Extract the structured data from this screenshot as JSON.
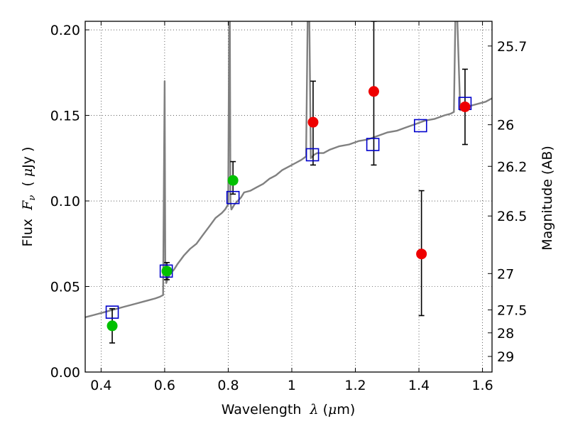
{
  "chart_data": {
    "type": "scatter",
    "xlabel": {
      "text": "Wavelength",
      "symbol": "λ",
      "unit_open": "(",
      "unit_mu": "μ",
      "unit_rest": "m)"
    },
    "ylabel": {
      "text": "Flux",
      "symbol": "F",
      "subscript": "ν",
      "unit_open": "(",
      "unit_mu": "μ",
      "unit_rest": "Jy )"
    },
    "y2label": "Magnitude (AB)",
    "xlim": [
      0.35,
      1.63
    ],
    "ylim": [
      0.0,
      0.205
    ],
    "grid": true,
    "x_ticks": [
      {
        "value": 0.4,
        "label": "0.4"
      },
      {
        "value": 0.6,
        "label": "0.6"
      },
      {
        "value": 0.8,
        "label": "0.8"
      },
      {
        "value": 1.0,
        "label": "1"
      },
      {
        "value": 1.2,
        "label": "1.2"
      },
      {
        "value": 1.4,
        "label": "1.4"
      },
      {
        "value": 1.6,
        "label": "1.6"
      }
    ],
    "y_ticks": [
      {
        "value": 0.0,
        "label": "0.00"
      },
      {
        "value": 0.05,
        "label": "0.05"
      },
      {
        "value": 0.1,
        "label": "0.10"
      },
      {
        "value": 0.15,
        "label": "0.15"
      },
      {
        "value": 0.2,
        "label": "0.20"
      }
    ],
    "mag_ticks": [
      {
        "value": 25.7,
        "label": "25.7"
      },
      {
        "value": 26.0,
        "label": "26"
      },
      {
        "value": 26.2,
        "label": "26.2"
      },
      {
        "value": 26.5,
        "label": "26.5"
      },
      {
        "value": 27.0,
        "label": "27"
      },
      {
        "value": 27.5,
        "label": "27.5"
      },
      {
        "value": 28.0,
        "label": "28"
      },
      {
        "value": 29.0,
        "label": "29"
      }
    ],
    "series": [
      {
        "kind": "line",
        "color": "#808080",
        "x": [
          0.35,
          0.37,
          0.39,
          0.41,
          0.43,
          0.45,
          0.47,
          0.49,
          0.51,
          0.53,
          0.55,
          0.57,
          0.585,
          0.595,
          0.598,
          0.6,
          0.602,
          0.605,
          0.61,
          0.62,
          0.63,
          0.64,
          0.66,
          0.68,
          0.7,
          0.72,
          0.74,
          0.76,
          0.78,
          0.79,
          0.8,
          0.803,
          0.805,
          0.807,
          0.81,
          0.82,
          0.83,
          0.84,
          0.85,
          0.87,
          0.89,
          0.91,
          0.93,
          0.95,
          0.97,
          0.99,
          1.01,
          1.03,
          1.045,
          1.05,
          1.055,
          1.06,
          1.07,
          1.08,
          1.1,
          1.12,
          1.15,
          1.18,
          1.21,
          1.24,
          1.27,
          1.3,
          1.33,
          1.36,
          1.39,
          1.42,
          1.45,
          1.48,
          1.5,
          1.51,
          1.515,
          1.52,
          1.53,
          1.55,
          1.57,
          1.59,
          1.61,
          1.63
        ],
        "y": [
          0.032,
          0.033,
          0.034,
          0.035,
          0.036,
          0.037,
          0.038,
          0.039,
          0.04,
          0.041,
          0.042,
          0.043,
          0.044,
          0.045,
          0.12,
          0.17,
          0.06,
          0.052,
          0.055,
          0.058,
          0.06,
          0.063,
          0.068,
          0.072,
          0.075,
          0.08,
          0.085,
          0.09,
          0.093,
          0.095,
          0.098,
          0.21,
          0.21,
          0.1,
          0.095,
          0.098,
          0.1,
          0.102,
          0.105,
          0.106,
          0.108,
          0.11,
          0.113,
          0.115,
          0.118,
          0.12,
          0.122,
          0.124,
          0.126,
          0.21,
          0.21,
          0.125,
          0.127,
          0.128,
          0.128,
          0.13,
          0.132,
          0.133,
          0.135,
          0.136,
          0.138,
          0.14,
          0.141,
          0.143,
          0.145,
          0.147,
          0.148,
          0.15,
          0.151,
          0.152,
          0.21,
          0.21,
          0.153,
          0.155,
          0.156,
          0.157,
          0.158,
          0.16
        ]
      },
      {
        "kind": "squares",
        "color": "#0000cc",
        "x": [
          0.435,
          0.605,
          0.815,
          1.065,
          1.255,
          1.405,
          1.545
        ],
        "y": [
          0.035,
          0.059,
          0.102,
          0.127,
          0.133,
          0.144,
          0.157
        ]
      },
      {
        "kind": "points",
        "color": "#00c000",
        "x": [
          0.435,
          0.607,
          0.815
        ],
        "y": [
          0.027,
          0.059,
          0.112
        ],
        "err_low": [
          0.017,
          0.054,
          0.104
        ],
        "err_high": [
          0.037,
          0.064,
          0.123
        ]
      },
      {
        "kind": "points",
        "color": "#ee0000",
        "x": [
          1.067,
          1.258,
          1.408,
          1.545
        ],
        "y": [
          0.146,
          0.164,
          0.069,
          0.155
        ],
        "err_low": [
          0.121,
          0.121,
          0.033,
          0.133
        ],
        "err_high": [
          0.17,
          0.205,
          0.106,
          0.177
        ]
      }
    ]
  }
}
